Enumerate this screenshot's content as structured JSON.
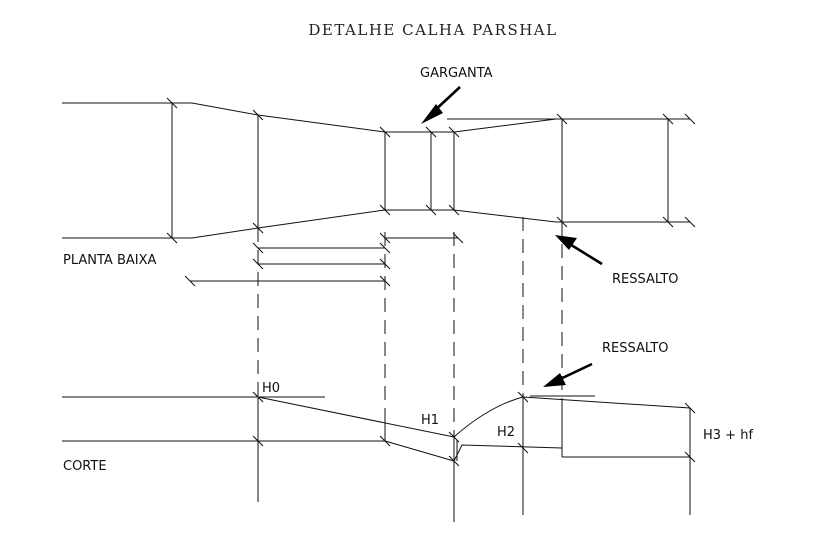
{
  "title": "DETALHE CALHA PARSHAL",
  "labels": {
    "garganta": "GARGANTA",
    "planta_baixa": "PLANTA BAIXA",
    "ressalto_plan": "RESSALTO",
    "ressalto_section": "RESSALTO",
    "corte": "CORTE",
    "h0": "H0",
    "h1": "H1",
    "h2": "H2",
    "h3": "H3 + hf"
  },
  "colors": {
    "line": "#111111",
    "background": "#ffffff"
  }
}
